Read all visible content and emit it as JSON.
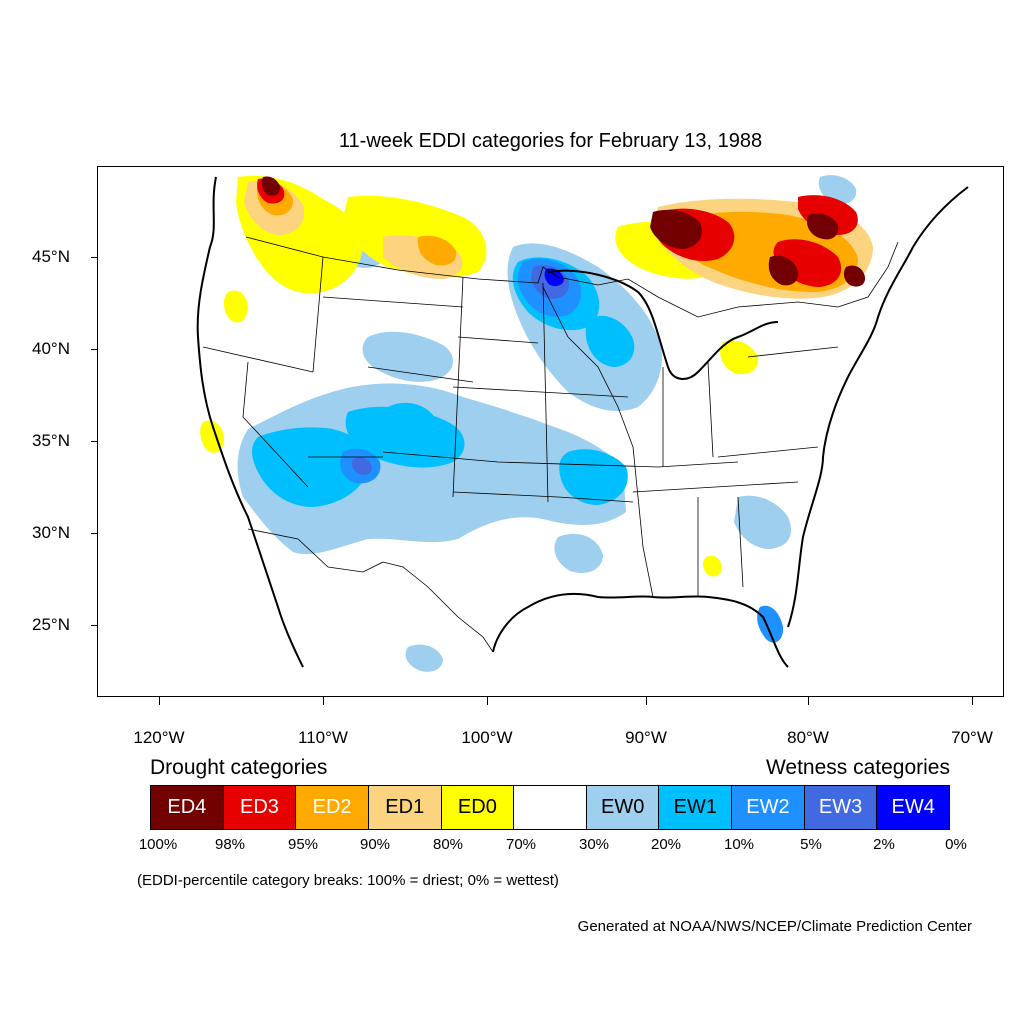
{
  "title": "11-week EDDI categories for February 13, 1988",
  "map": {
    "lat_labels": [
      "45°N",
      "40°N",
      "35°N",
      "30°N",
      "25°N"
    ],
    "lon_labels": [
      "120°W",
      "110°W",
      "100°W",
      "90°W",
      "80°W",
      "70°W"
    ]
  },
  "legend": {
    "drought_heading": "Drought categories",
    "wetness_heading": "Wetness categories",
    "categories": [
      {
        "label": "ED4",
        "color": "#730000",
        "text_color": "#ffffff"
      },
      {
        "label": "ED3",
        "color": "#e60000",
        "text_color": "#ffffff"
      },
      {
        "label": "ED2",
        "color": "#ffaa00",
        "text_color": "#ffffff"
      },
      {
        "label": "ED1",
        "color": "#fcd37f",
        "text_color": "#000000"
      },
      {
        "label": "ED0",
        "color": "#ffff00",
        "text_color": "#000000"
      },
      {
        "label": "",
        "color": "#ffffff",
        "text_color": "#000000"
      },
      {
        "label": "EW0",
        "color": "#9ecfee",
        "text_color": "#000000"
      },
      {
        "label": "EW1",
        "color": "#00bfff",
        "text_color": "#000000"
      },
      {
        "label": "EW2",
        "color": "#1e90ff",
        "text_color": "#ffffff"
      },
      {
        "label": "EW3",
        "color": "#4169e1",
        "text_color": "#ffffff"
      },
      {
        "label": "EW4",
        "color": "#0000ff",
        "text_color": "#ffffff"
      }
    ],
    "breaks": [
      "100%",
      "98%",
      "95%",
      "90%",
      "80%",
      "70%",
      "30%",
      "20%",
      "10%",
      "5%",
      "2%",
      "0%"
    ]
  },
  "note": "(EDDI-percentile category breaks: 100% = driest; 0% = wettest)",
  "credit": "Generated at NOAA/NWS/NCEP/Climate Prediction Center"
}
